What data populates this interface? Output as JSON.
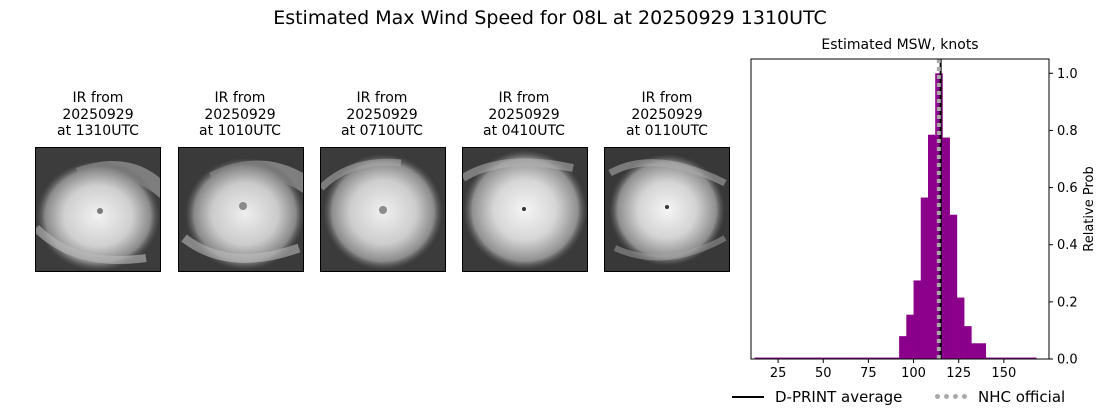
{
  "title": "Estimated Max Wind Speed for 08L at 20250929 1310UTC",
  "panels": [
    {
      "line1": "IR from",
      "line2": "20250929",
      "line3": "at 1310UTC",
      "image": "hurricane-ir-image"
    },
    {
      "line1": "IR from",
      "line2": "20250929",
      "line3": "at 1010UTC",
      "image": "hurricane-ir-image"
    },
    {
      "line1": "IR from",
      "line2": "20250929",
      "line3": "at 0710UTC",
      "image": "hurricane-ir-image"
    },
    {
      "line1": "IR from",
      "line2": "20250929",
      "line3": "at 0410UTC",
      "image": "hurricane-ir-image"
    },
    {
      "line1": "IR from",
      "line2": "20250929",
      "line3": "at 0110UTC",
      "image": "hurricane-ir-image"
    }
  ],
  "chart_data": {
    "type": "bar",
    "title": "Estimated MSW, knots",
    "xlabel": "",
    "ylabel": "Relative Prob",
    "xlim": [
      10,
      175
    ],
    "ylim": [
      0,
      1.05
    ],
    "yaxis_side": "right",
    "xticks": [
      25,
      50,
      75,
      100,
      125,
      150
    ],
    "yticks": [
      0.0,
      0.2,
      0.4,
      0.6,
      0.8,
      1.0
    ],
    "bin_width": 4,
    "bins": [
      {
        "x": 14,
        "value": 0.005
      },
      {
        "x": 18,
        "value": 0.005
      },
      {
        "x": 22,
        "value": 0.005
      },
      {
        "x": 26,
        "value": 0.005
      },
      {
        "x": 30,
        "value": 0.005
      },
      {
        "x": 34,
        "value": 0.005
      },
      {
        "x": 38,
        "value": 0.005
      },
      {
        "x": 42,
        "value": 0.005
      },
      {
        "x": 46,
        "value": 0.005
      },
      {
        "x": 50,
        "value": 0.005
      },
      {
        "x": 54,
        "value": 0.005
      },
      {
        "x": 58,
        "value": 0.005
      },
      {
        "x": 62,
        "value": 0.005
      },
      {
        "x": 66,
        "value": 0.005
      },
      {
        "x": 70,
        "value": 0.005
      },
      {
        "x": 74,
        "value": 0.005
      },
      {
        "x": 78,
        "value": 0.005
      },
      {
        "x": 82,
        "value": 0.005
      },
      {
        "x": 86,
        "value": 0.005
      },
      {
        "x": 90,
        "value": 0.005
      },
      {
        "x": 94,
        "value": 0.08
      },
      {
        "x": 98,
        "value": 0.155
      },
      {
        "x": 102,
        "value": 0.275
      },
      {
        "x": 106,
        "value": 0.565
      },
      {
        "x": 110,
        "value": 0.785
      },
      {
        "x": 114,
        "value": 1.0
      },
      {
        "x": 118,
        "value": 0.775
      },
      {
        "x": 122,
        "value": 0.505
      },
      {
        "x": 126,
        "value": 0.215
      },
      {
        "x": 130,
        "value": 0.115
      },
      {
        "x": 134,
        "value": 0.055
      },
      {
        "x": 138,
        "value": 0.055
      },
      {
        "x": 142,
        "value": 0.005
      },
      {
        "x": 146,
        "value": 0.005
      },
      {
        "x": 150,
        "value": 0.005
      },
      {
        "x": 154,
        "value": 0.005
      },
      {
        "x": 158,
        "value": 0.005
      },
      {
        "x": 162,
        "value": 0.005
      },
      {
        "x": 166,
        "value": 0.005
      }
    ],
    "bar_color": "#8b008b",
    "dprint_average": 115,
    "nhc_official": 114,
    "legend": {
      "placement": "bottom",
      "items": [
        {
          "label": "D-PRINT average",
          "style": "solid",
          "color": "#000000"
        },
        {
          "label": "NHC official",
          "style": "dotted",
          "color": "#aaaaaa"
        }
      ]
    }
  }
}
